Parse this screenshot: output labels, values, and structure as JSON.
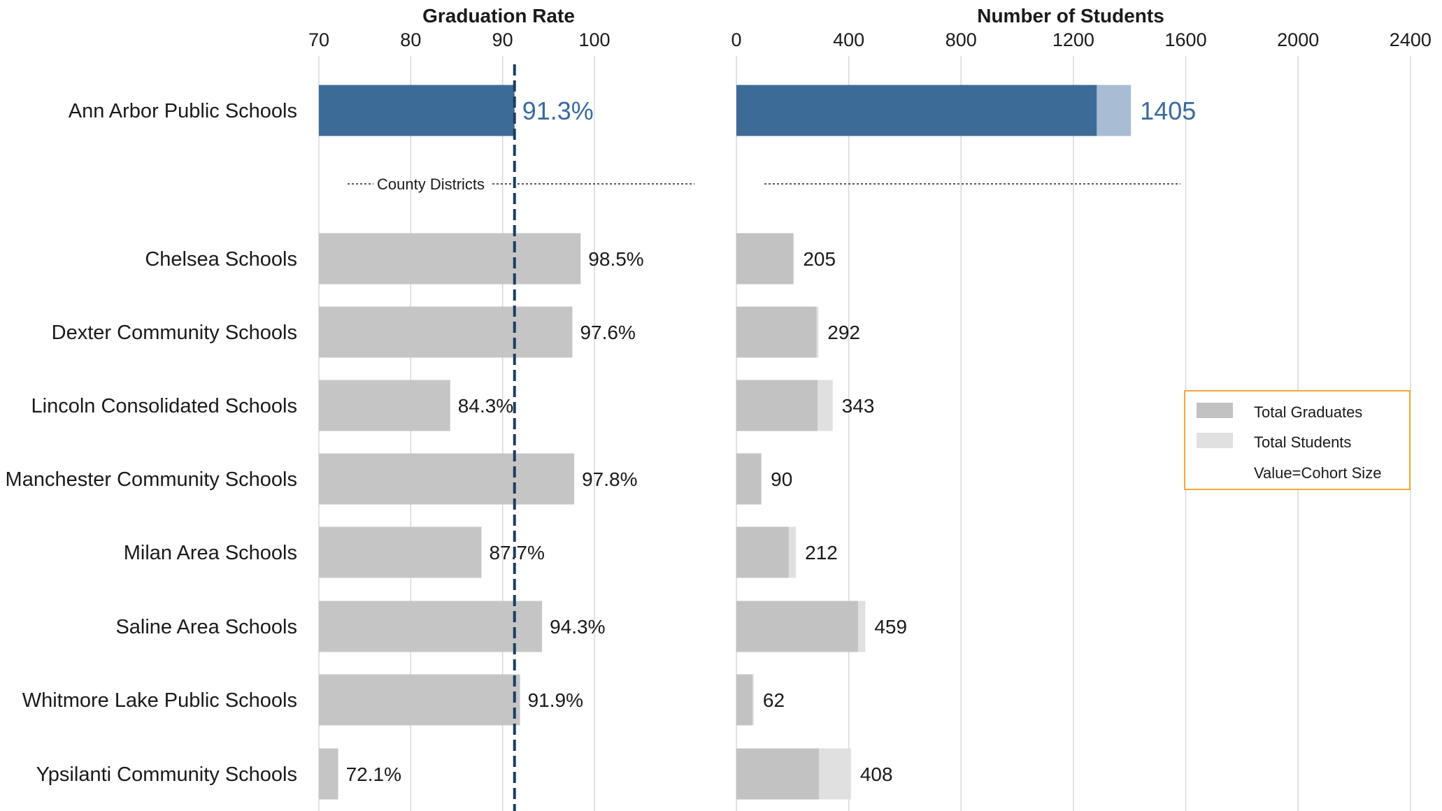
{
  "chart_data": {
    "type": "bar",
    "categories": [
      "Ann Arbor Public Schools",
      "Chelsea Schools",
      "Dexter Community Schools",
      "Lincoln Consolidated Schools",
      "Manchester Community Schools",
      "Milan Area Schools",
      "Saline Area Schools",
      "Whitmore Lake Public Schools",
      "Ypsilanti Community Schools"
    ],
    "highlight_category": "Ann Arbor Public Schools",
    "separator_label": "County Districts",
    "reference_line": 91.3,
    "panels": [
      {
        "title": "Graduation Rate",
        "xlim": [
          70,
          115
        ],
        "ticks": [
          "70",
          "80",
          "90",
          "100"
        ],
        "series": [
          {
            "values": [
              91.3,
              98.5,
              97.6,
              84.3,
              97.8,
              87.7,
              94.3,
              91.9,
              72.1
            ],
            "labels": [
              "91.3%",
              "98.5%",
              "97.6%",
              "84.3%",
              "97.8%",
              "87.7%",
              "94.3%",
              "91.9%",
              "72.1%"
            ]
          }
        ]
      },
      {
        "title": "Number of Students",
        "xlim": [
          0,
          2500
        ],
        "ticks": [
          "0",
          "400",
          "800",
          "1200",
          "1600",
          "2000",
          "2400"
        ],
        "series": [
          {
            "name": "Total Graduates",
            "values": [
              1283,
              202,
              285,
              289,
              88,
              186,
              433,
              57,
              294
            ]
          },
          {
            "name": "Total Students",
            "values": [
              1405,
              205,
              292,
              343,
              90,
              212,
              459,
              62,
              408
            ]
          }
        ],
        "labels": [
          "1405",
          "205",
          "292",
          "343",
          "90",
          "212",
          "459",
          "62",
          "408"
        ]
      }
    ],
    "legend": {
      "position": "right",
      "items": [
        "Total Graduates",
        "Total Students"
      ],
      "note": "Value=Cohort Size"
    },
    "colors": {
      "highlight_fill": "#3d6b98",
      "highlight_students": "#a8bdd4",
      "bar_fill": "#c5c5c5",
      "graduates_fill": "#c2c2c2",
      "students_fill": "#e0e0e0",
      "highlight_label": "#3a6a9c",
      "grid": "#d8d8d8",
      "reference_line": "#1d3e5e",
      "legend_border": "#f2a93b"
    }
  }
}
